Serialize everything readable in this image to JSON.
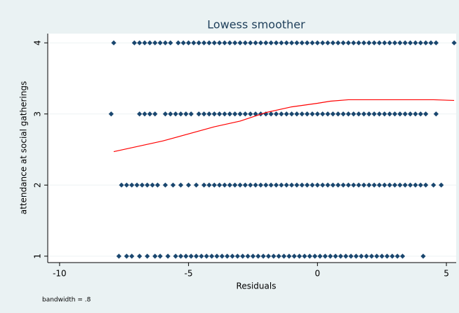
{
  "chart_data": {
    "type": "scatter",
    "title": "Lowess smoother",
    "x_label": "Residuals",
    "y_label": "attendance at social gatherings",
    "note": "bandwidth = .8",
    "xlim": [
      -10.46,
      5.38
    ],
    "ylim": [
      0.91,
      4.13
    ],
    "xticks": [
      -10,
      -5,
      0,
      5
    ],
    "yticks": [
      1,
      2,
      3,
      4
    ],
    "grid": true,
    "series": [
      {
        "type": "scatter",
        "color": "#1a476f",
        "x": [
          -7.9,
          -7.1,
          -6.9,
          -6.7,
          -6.5,
          -6.3,
          -6.1,
          -5.9,
          -5.7,
          -5.4,
          -5.2,
          -5.0,
          -4.8,
          -4.6,
          -4.4,
          -4.2,
          -4,
          -3.8,
          -3.6,
          -3.4,
          -3.2,
          -3,
          -2.8,
          -2.6,
          -2.4,
          -2.2,
          -2,
          -1.8,
          -1.6,
          -1.4,
          -1.2,
          -1,
          -0.8,
          -0.6,
          -0.4,
          -0.2,
          0,
          0.2,
          0.4,
          0.6,
          0.8,
          1,
          1.2,
          1.4,
          1.6,
          1.8,
          2,
          2.2,
          2.4,
          2.6,
          2.8,
          3,
          3.2,
          3.4,
          3.6,
          3.8,
          4,
          4.2,
          4.4,
          4.6,
          5.3
        ],
        "values": [
          4,
          4,
          4,
          4,
          4,
          4,
          4,
          4,
          4,
          4,
          4,
          4,
          4,
          4,
          4,
          4,
          4,
          4,
          4,
          4,
          4,
          4,
          4,
          4,
          4,
          4,
          4,
          4,
          4,
          4,
          4,
          4,
          4,
          4,
          4,
          4,
          4,
          4,
          4,
          4,
          4,
          4,
          4,
          4,
          4,
          4,
          4,
          4,
          4,
          4,
          4,
          4,
          4,
          4,
          4,
          4,
          4,
          4,
          4,
          4,
          4
        ]
      },
      {
        "type": "scatter",
        "color": "#1a476f",
        "x": [
          -8.0,
          -6.9,
          -6.7,
          -6.5,
          -6.3,
          -5.9,
          -5.7,
          -5.5,
          -5.3,
          -5.1,
          -4.9,
          -4.6,
          -4.4,
          -4.2,
          -4,
          -3.8,
          -3.6,
          -3.4,
          -3.2,
          -3,
          -2.8,
          -2.6,
          -2.4,
          -2.2,
          -2,
          -1.8,
          -1.6,
          -1.4,
          -1.2,
          -1,
          -0.8,
          -0.6,
          -0.4,
          -0.2,
          0,
          0.2,
          0.4,
          0.6,
          0.8,
          1,
          1.2,
          1.4,
          1.6,
          1.8,
          2,
          2.2,
          2.4,
          2.6,
          2.8,
          3,
          3.2,
          3.4,
          3.6,
          3.8,
          4.0,
          4.2,
          4.6
        ],
        "values": [
          3,
          3,
          3,
          3,
          3,
          3,
          3,
          3,
          3,
          3,
          3,
          3,
          3,
          3,
          3,
          3,
          3,
          3,
          3,
          3,
          3,
          3,
          3,
          3,
          3,
          3,
          3,
          3,
          3,
          3,
          3,
          3,
          3,
          3,
          3,
          3,
          3,
          3,
          3,
          3,
          3,
          3,
          3,
          3,
          3,
          3,
          3,
          3,
          3,
          3,
          3,
          3,
          3,
          3,
          3,
          3,
          3
        ]
      },
      {
        "type": "scatter",
        "color": "#1a476f",
        "x": [
          -7.6,
          -7.4,
          -7.2,
          -7,
          -6.8,
          -6.6,
          -6.4,
          -6.2,
          -5.9,
          -5.6,
          -5.3,
          -5,
          -4.7,
          -4.4,
          -4.2,
          -4,
          -3.8,
          -3.6,
          -3.4,
          -3.2,
          -3,
          -2.8,
          -2.6,
          -2.4,
          -2.2,
          -2,
          -1.8,
          -1.6,
          -1.4,
          -1.2,
          -1,
          -0.8,
          -0.6,
          -0.4,
          -0.2,
          0,
          0.2,
          0.4,
          0.6,
          0.8,
          1,
          1.2,
          1.4,
          1.6,
          1.8,
          2,
          2.2,
          2.4,
          2.6,
          2.8,
          3,
          3.2,
          3.4,
          3.6,
          3.8,
          4.0,
          4.2,
          4.5,
          4.8
        ],
        "values": [
          2,
          2,
          2,
          2,
          2,
          2,
          2,
          2,
          2,
          2,
          2,
          2,
          2,
          2,
          2,
          2,
          2,
          2,
          2,
          2,
          2,
          2,
          2,
          2,
          2,
          2,
          2,
          2,
          2,
          2,
          2,
          2,
          2,
          2,
          2,
          2,
          2,
          2,
          2,
          2,
          2,
          2,
          2,
          2,
          2,
          2,
          2,
          2,
          2,
          2,
          2,
          2,
          2,
          2,
          2,
          2,
          2,
          2,
          2
        ]
      },
      {
        "type": "scatter",
        "color": "#1a476f",
        "x": [
          -7.7,
          -7.4,
          -7.2,
          -6.9,
          -6.6,
          -6.3,
          -6.1,
          -5.8,
          -5.5,
          -5.3,
          -5.1,
          -4.9,
          -4.7,
          -4.5,
          -4.3,
          -4.1,
          -3.9,
          -3.7,
          -3.5,
          -3.3,
          -3.1,
          -2.9,
          -2.7,
          -2.5,
          -2.3,
          -2.1,
          -1.9,
          -1.7,
          -1.5,
          -1.3,
          -1.1,
          -0.9,
          -0.7,
          -0.5,
          -0.3,
          -0.1,
          0.1,
          0.3,
          0.5,
          0.7,
          0.9,
          1.1,
          1.3,
          1.5,
          1.7,
          1.9,
          2.1,
          2.3,
          2.5,
          2.7,
          2.9,
          3.1,
          3.3,
          4.1
        ],
        "values": [
          1,
          1,
          1,
          1,
          1,
          1,
          1,
          1,
          1,
          1,
          1,
          1,
          1,
          1,
          1,
          1,
          1,
          1,
          1,
          1,
          1,
          1,
          1,
          1,
          1,
          1,
          1,
          1,
          1,
          1,
          1,
          1,
          1,
          1,
          1,
          1,
          1,
          1,
          1,
          1,
          1,
          1,
          1,
          1,
          1,
          1,
          1,
          1,
          1,
          1,
          1,
          1,
          1,
          1
        ]
      },
      {
        "type": "line",
        "color": "#ff0000",
        "x": [
          -7.9,
          -6,
          -4,
          -3,
          -2,
          -1,
          0,
          0.5,
          1.2,
          4.5,
          5.3
        ],
        "values": [
          2.47,
          2.62,
          2.82,
          2.9,
          3.02,
          3.1,
          3.15,
          3.18,
          3.2,
          3.2,
          3.19
        ]
      }
    ]
  }
}
